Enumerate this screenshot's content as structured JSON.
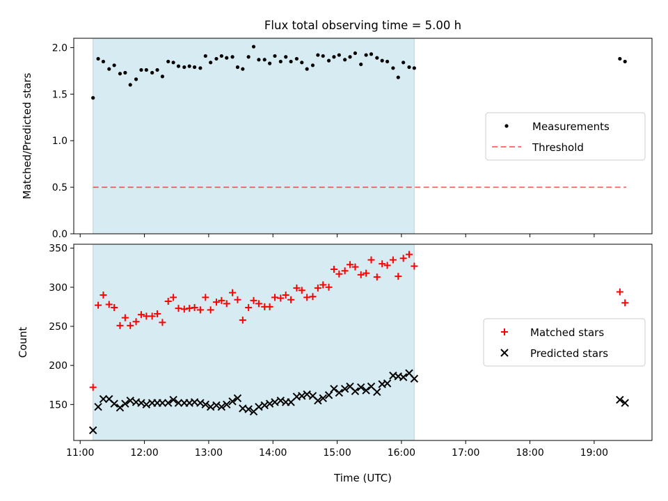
{
  "title": "Flux total observing time = 5.00 h",
  "colors": {
    "span": "#add8e6",
    "threshold": "#ff0000",
    "measurement": "#000000",
    "matched": "#ff0000",
    "predicted": "#000000"
  },
  "chart_data": [
    {
      "type": "scatter",
      "ylabel": "Matched/Predicted stars",
      "xlabel": "",
      "x_unit": "hours UTC",
      "xlim": [
        10.9,
        19.9
      ],
      "ylim": [
        0,
        2.1
      ],
      "yticks": [
        0.0,
        0.5,
        1.0,
        1.5,
        2.0
      ],
      "ytick_labels": [
        "0.0",
        "0.5",
        "1.0",
        "1.5",
        "2.0"
      ],
      "observing_span": [
        11.2,
        16.2
      ],
      "legend_position": "center-right",
      "threshold": {
        "name": "Threshold",
        "value": 0.5,
        "x_range": [
          11.2,
          19.5
        ]
      },
      "series": [
        {
          "name": "Measurements",
          "points": [
            [
              11.2,
              1.46
            ],
            [
              11.28,
              1.88
            ],
            [
              11.36,
              1.85
            ],
            [
              11.45,
              1.77
            ],
            [
              11.53,
              1.81
            ],
            [
              11.62,
              1.72
            ],
            [
              11.7,
              1.73
            ],
            [
              11.78,
              1.6
            ],
            [
              11.87,
              1.66
            ],
            [
              11.95,
              1.76
            ],
            [
              12.03,
              1.76
            ],
            [
              12.12,
              1.73
            ],
            [
              12.2,
              1.76
            ],
            [
              12.28,
              1.69
            ],
            [
              12.37,
              1.85
            ],
            [
              12.45,
              1.84
            ],
            [
              12.53,
              1.8
            ],
            [
              12.62,
              1.79
            ],
            [
              12.7,
              1.8
            ],
            [
              12.78,
              1.79
            ],
            [
              12.87,
              1.78
            ],
            [
              12.95,
              1.91
            ],
            [
              13.03,
              1.84
            ],
            [
              13.12,
              1.88
            ],
            [
              13.2,
              1.91
            ],
            [
              13.28,
              1.89
            ],
            [
              13.37,
              1.9
            ],
            [
              13.45,
              1.79
            ],
            [
              13.53,
              1.77
            ],
            [
              13.62,
              1.9
            ],
            [
              13.7,
              2.01
            ],
            [
              13.78,
              1.87
            ],
            [
              13.87,
              1.87
            ],
            [
              13.95,
              1.83
            ],
            [
              14.03,
              1.91
            ],
            [
              14.12,
              1.85
            ],
            [
              14.2,
              1.9
            ],
            [
              14.28,
              1.85
            ],
            [
              14.37,
              1.88
            ],
            [
              14.45,
              1.84
            ],
            [
              14.53,
              1.77
            ],
            [
              14.62,
              1.81
            ],
            [
              14.7,
              1.92
            ],
            [
              14.78,
              1.91
            ],
            [
              14.87,
              1.86
            ],
            [
              14.95,
              1.9
            ],
            [
              15.03,
              1.92
            ],
            [
              15.12,
              1.87
            ],
            [
              15.2,
              1.9
            ],
            [
              15.28,
              1.94
            ],
            [
              15.37,
              1.82
            ],
            [
              15.45,
              1.92
            ],
            [
              15.53,
              1.93
            ],
            [
              15.62,
              1.89
            ],
            [
              15.7,
              1.86
            ],
            [
              15.78,
              1.85
            ],
            [
              15.87,
              1.78
            ],
            [
              15.95,
              1.68
            ],
            [
              16.03,
              1.84
            ],
            [
              16.12,
              1.79
            ],
            [
              16.2,
              1.78
            ],
            [
              19.4,
              1.88
            ],
            [
              19.48,
              1.85
            ]
          ]
        }
      ]
    },
    {
      "type": "scatter",
      "ylabel": "Count",
      "xlabel": "Time (UTC)",
      "x_unit": "hours UTC",
      "xlim": [
        10.9,
        19.9
      ],
      "ylim": [
        104,
        355
      ],
      "yticks": [
        150,
        200,
        250,
        300,
        350
      ],
      "ytick_labels": [
        "150",
        "200",
        "250",
        "300",
        "350"
      ],
      "xticks": [
        11,
        12,
        13,
        14,
        15,
        16,
        17,
        18,
        19
      ],
      "xtick_labels": [
        "11:00",
        "12:00",
        "13:00",
        "14:00",
        "15:00",
        "16:00",
        "17:00",
        "18:00",
        "19:00"
      ],
      "observing_span": [
        11.2,
        16.2
      ],
      "legend_position": "center-right",
      "series": [
        {
          "name": "Matched stars",
          "marker": "plus",
          "points": [
            [
              11.2,
              172
            ],
            [
              11.28,
              277
            ],
            [
              11.36,
              290
            ],
            [
              11.45,
              278
            ],
            [
              11.53,
              274
            ],
            [
              11.62,
              251
            ],
            [
              11.7,
              261
            ],
            [
              11.78,
              251
            ],
            [
              11.87,
              256
            ],
            [
              11.95,
              265
            ],
            [
              12.03,
              263
            ],
            [
              12.12,
              263
            ],
            [
              12.2,
              266
            ],
            [
              12.28,
              255
            ],
            [
              12.37,
              282
            ],
            [
              12.45,
              287
            ],
            [
              12.53,
              273
            ],
            [
              12.62,
              272
            ],
            [
              12.7,
              273
            ],
            [
              12.78,
              274
            ],
            [
              12.87,
              271
            ],
            [
              12.95,
              287
            ],
            [
              13.03,
              271
            ],
            [
              13.12,
              281
            ],
            [
              13.2,
              283
            ],
            [
              13.28,
              279
            ],
            [
              13.37,
              293
            ],
            [
              13.45,
              284
            ],
            [
              13.53,
              258
            ],
            [
              13.62,
              274
            ],
            [
              13.7,
              283
            ],
            [
              13.78,
              279
            ],
            [
              13.87,
              275
            ],
            [
              13.95,
              275
            ],
            [
              14.03,
              287
            ],
            [
              14.12,
              286
            ],
            [
              14.2,
              290
            ],
            [
              14.28,
              284
            ],
            [
              14.37,
              299
            ],
            [
              14.45,
              296
            ],
            [
              14.53,
              287
            ],
            [
              14.62,
              288
            ],
            [
              14.7,
              299
            ],
            [
              14.78,
              303
            ],
            [
              14.87,
              300
            ],
            [
              14.95,
              323
            ],
            [
              15.03,
              317
            ],
            [
              15.12,
              321
            ],
            [
              15.2,
              329
            ],
            [
              15.28,
              326
            ],
            [
              15.37,
              316
            ],
            [
              15.45,
              318
            ],
            [
              15.53,
              335
            ],
            [
              15.62,
              313
            ],
            [
              15.7,
              330
            ],
            [
              15.78,
              328
            ],
            [
              15.87,
              335
            ],
            [
              15.95,
              314
            ],
            [
              16.03,
              337
            ],
            [
              16.12,
              342
            ],
            [
              16.2,
              327
            ],
            [
              19.4,
              294
            ],
            [
              19.48,
              280
            ]
          ]
        },
        {
          "name": "Predicted stars",
          "marker": "x",
          "points": [
            [
              11.2,
              117
            ],
            [
              11.28,
              147
            ],
            [
              11.36,
              157
            ],
            [
              11.45,
              157
            ],
            [
              11.53,
              151
            ],
            [
              11.62,
              146
            ],
            [
              11.7,
              151
            ],
            [
              11.78,
              155
            ],
            [
              11.87,
              153
            ],
            [
              11.95,
              152
            ],
            [
              12.03,
              150
            ],
            [
              12.12,
              152
            ],
            [
              12.2,
              152
            ],
            [
              12.28,
              152
            ],
            [
              12.37,
              152
            ],
            [
              12.45,
              156
            ],
            [
              12.53,
              152
            ],
            [
              12.62,
              152
            ],
            [
              12.7,
              152
            ],
            [
              12.78,
              153
            ],
            [
              12.87,
              152
            ],
            [
              12.95,
              150
            ],
            [
              13.03,
              147
            ],
            [
              13.12,
              149
            ],
            [
              13.2,
              147
            ],
            [
              13.28,
              150
            ],
            [
              13.37,
              154
            ],
            [
              13.45,
              158
            ],
            [
              13.53,
              145
            ],
            [
              13.62,
              144
            ],
            [
              13.7,
              141
            ],
            [
              13.78,
              147
            ],
            [
              13.87,
              149
            ],
            [
              13.95,
              151
            ],
            [
              14.03,
              153
            ],
            [
              14.12,
              155
            ],
            [
              14.2,
              153
            ],
            [
              14.28,
              153
            ],
            [
              14.37,
              160
            ],
            [
              14.45,
              161
            ],
            [
              14.53,
              163
            ],
            [
              14.62,
              161
            ],
            [
              14.7,
              155
            ],
            [
              14.78,
              158
            ],
            [
              14.87,
              162
            ],
            [
              14.95,
              170
            ],
            [
              15.03,
              165
            ],
            [
              15.12,
              170
            ],
            [
              15.2,
              173
            ],
            [
              15.28,
              167
            ],
            [
              15.37,
              172
            ],
            [
              15.45,
              168
            ],
            [
              15.53,
              173
            ],
            [
              15.62,
              166
            ],
            [
              15.7,
              176
            ],
            [
              15.78,
              177
            ],
            [
              15.87,
              187
            ],
            [
              15.95,
              186
            ],
            [
              16.03,
              185
            ],
            [
              16.12,
              190
            ],
            [
              16.2,
              183
            ],
            [
              19.4,
              156
            ],
            [
              19.48,
              152
            ]
          ]
        }
      ]
    }
  ]
}
